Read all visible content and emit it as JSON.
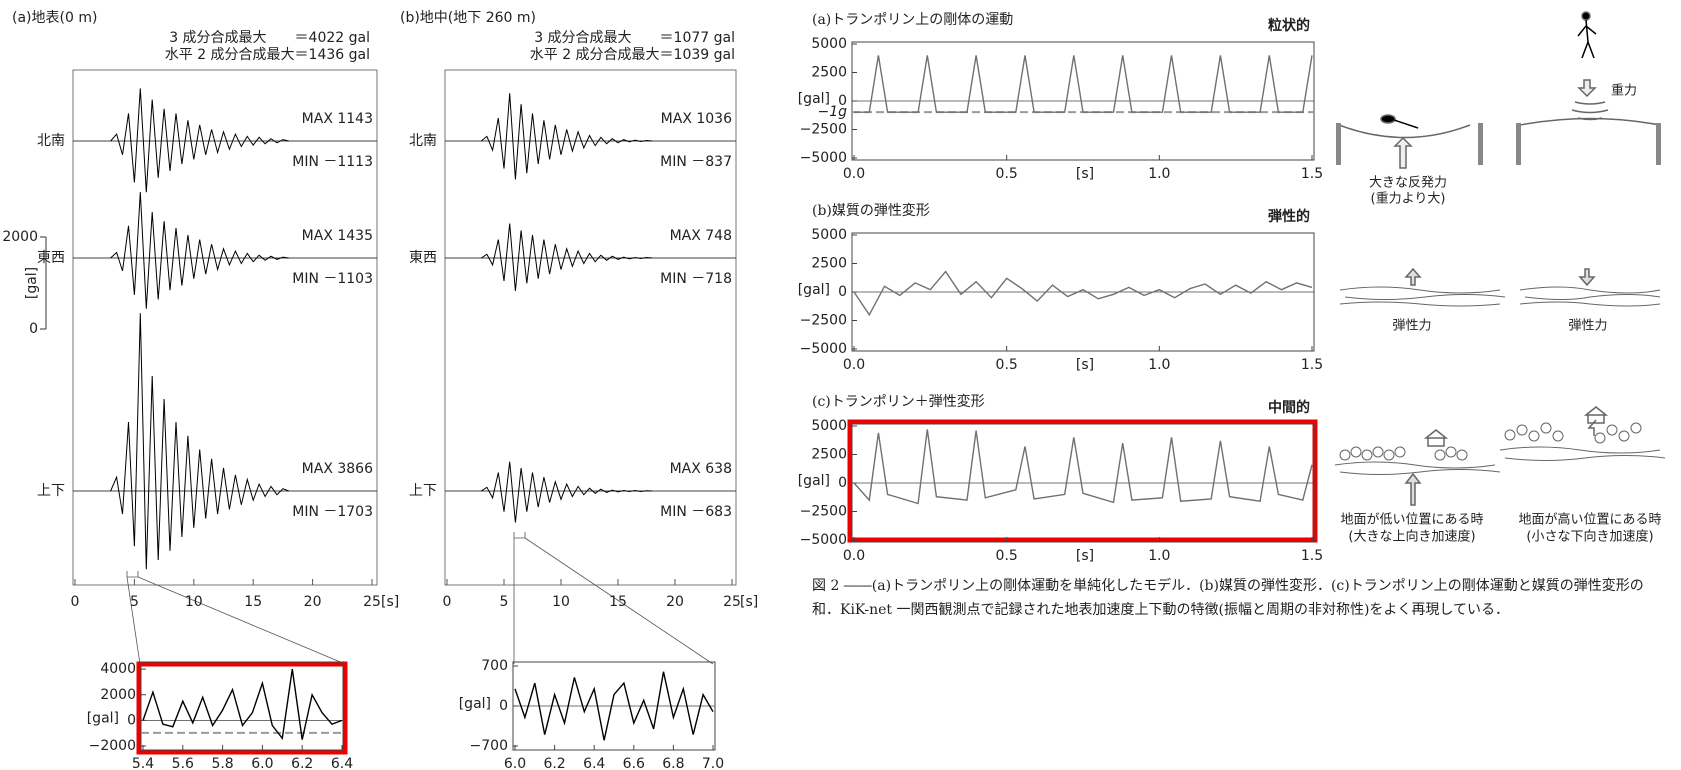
{
  "chart_data": [
    {
      "type": "seismogram",
      "title": "(a)地表(0 m)",
      "subtitle": [
        "3 成分合成最大　　＝4022 gal",
        "水平 2 成分合成最大＝1436 gal"
      ],
      "xlim": [
        0,
        25
      ],
      "xticks": [
        0,
        5,
        10,
        15,
        20,
        25
      ],
      "xlabel": "[s]",
      "scale_ticks": [
        2000,
        0
      ],
      "scale_label": "[gal]",
      "x": [
        3,
        3.5,
        4,
        4.5,
        5,
        5.5,
        6,
        6.5,
        7,
        7.5,
        8,
        8.5,
        9,
        9.5,
        10,
        10.5,
        11,
        11.5,
        12,
        12.5,
        13,
        13.5,
        14,
        14.5,
        15,
        15.5,
        16,
        16.5,
        17,
        17.5,
        18
      ],
      "series": [
        {
          "name": "北南",
          "color": "#000000",
          "max_label": "MAX 1143",
          "min_label": "MIN －1113",
          "values": [
            0,
            150,
            -300,
            600,
            -900,
            1143,
            -1113,
            900,
            -800,
            700,
            -650,
            600,
            -500,
            450,
            -400,
            350,
            -300,
            250,
            -250,
            200,
            -180,
            150,
            -120,
            100,
            -90,
            80,
            -60,
            50,
            -40,
            30,
            0
          ]
        },
        {
          "name": "東西",
          "color": "#000000",
          "max_label": "MAX 1435",
          "min_label": "MIN －1103",
          "values": [
            0,
            120,
            -280,
            700,
            -800,
            1435,
            -1103,
            1000,
            -900,
            800,
            -700,
            650,
            -600,
            500,
            -450,
            400,
            -350,
            300,
            -250,
            200,
            -150,
            150,
            -120,
            100,
            -80,
            60,
            -50,
            40,
            -30,
            20,
            0
          ]
        },
        {
          "name": "上下",
          "color": "#000000",
          "max_label": "MAX 3866",
          "min_label": "MIN －1703",
          "values": [
            0,
            300,
            -500,
            1500,
            -1200,
            3866,
            -1703,
            2500,
            -1500,
            2000,
            -1300,
            1500,
            -1000,
            1200,
            -800,
            900,
            -600,
            700,
            -500,
            500,
            -400,
            350,
            -300,
            250,
            -200,
            150,
            -120,
            100,
            -80,
            50,
            0
          ]
        }
      ]
    },
    {
      "type": "seismogram",
      "title": "(b)地中(地下 260 m)",
      "subtitle": [
        "3 成分合成最大　　＝1077 gal",
        "水平 2 成分合成最大＝1039 gal"
      ],
      "xlim": [
        0,
        25
      ],
      "xticks": [
        0,
        5,
        10,
        15,
        20,
        25
      ],
      "xlabel": "[s]",
      "x": [
        3,
        3.5,
        4,
        4.5,
        5,
        5.5,
        6,
        6.5,
        7,
        7.5,
        8,
        8.5,
        9,
        9.5,
        10,
        10.5,
        11,
        11.5,
        12,
        12.5,
        13,
        13.5,
        14,
        14.5,
        15,
        15.5,
        16,
        16.5,
        17,
        17.5,
        18
      ],
      "series": [
        {
          "name": "北南",
          "color": "#000000",
          "max_label": "MAX 1036",
          "min_label": "MIN －837",
          "values": [
            0,
            100,
            -200,
            500,
            -600,
            1036,
            -837,
            800,
            -700,
            600,
            -500,
            450,
            -400,
            350,
            -300,
            250,
            -220,
            200,
            -150,
            120,
            -100,
            80,
            -60,
            50,
            -40,
            30,
            -20,
            20,
            -10,
            10,
            0
          ]
        },
        {
          "name": "東西",
          "color": "#000000",
          "max_label": "MAX 748",
          "min_label": "MIN －718",
          "values": [
            0,
            80,
            -150,
            400,
            -500,
            748,
            -718,
            600,
            -550,
            500,
            -450,
            400,
            -350,
            300,
            -250,
            200,
            -180,
            150,
            -120,
            100,
            -80,
            60,
            -50,
            40,
            -30,
            20,
            -20,
            10,
            -10,
            10,
            0
          ]
        },
        {
          "name": "上下",
          "color": "#000000",
          "max_label": "MAX 638",
          "min_label": "MIN －683",
          "values": [
            0,
            80,
            -150,
            400,
            -450,
            638,
            -683,
            500,
            -450,
            400,
            -350,
            300,
            -250,
            200,
            -180,
            150,
            -120,
            100,
            -80,
            60,
            -50,
            40,
            -30,
            20,
            -20,
            10,
            -10,
            10,
            -10,
            5,
            0
          ]
        }
      ]
    },
    {
      "type": "line",
      "xlim": [
        5.4,
        6.4
      ],
      "xticks": [
        5.4,
        5.6,
        5.8,
        {
          "value": 6,
          "label": "6.0"
        },
        6.2,
        6.4
      ],
      "ylim": [
        -2000,
        4400
      ],
      "yticks": [
        4000,
        2000,
        0,
        {
          "value": -2000,
          "label": "−2000"
        }
      ],
      "ylabel": "[gal]",
      "ref_line": -980,
      "color": "#000000",
      "x": [
        5.4,
        5.45,
        5.5,
        5.55,
        5.6,
        5.65,
        5.7,
        5.75,
        5.8,
        5.85,
        5.9,
        5.95,
        6,
        6.05,
        6.1,
        6.15,
        6.2,
        6.25,
        6.3,
        6.35,
        6.4
      ],
      "values": [
        0,
        2200,
        -300,
        -500,
        1500,
        -200,
        1800,
        -400,
        800,
        2400,
        -400,
        600,
        2900,
        -400,
        -1400,
        4000,
        -1500,
        2000,
        600,
        -300,
        0
      ]
    },
    {
      "type": "line",
      "xlim": [
        6,
        7
      ],
      "xticks": [
        {
          "value": 6,
          "label": "6.0"
        },
        6.2,
        6.4,
        6.6,
        6.8,
        {
          "value": 7,
          "label": "7.0"
        }
      ],
      "ylim": [
        -700,
        700
      ],
      "yticks": [
        700,
        0,
        {
          "value": -700,
          "label": "−700"
        }
      ],
      "ylabel": "[gal]",
      "color": "#000000",
      "x": [
        6,
        6.05,
        6.1,
        6.15,
        6.2,
        6.25,
        6.3,
        6.35,
        6.4,
        6.45,
        6.5,
        6.55,
        6.6,
        6.65,
        6.7,
        6.75,
        6.8,
        6.85,
        6.9,
        6.95,
        7
      ],
      "values": [
        300,
        -200,
        400,
        -500,
        200,
        -300,
        500,
        -100,
        300,
        -600,
        200,
        400,
        -300,
        100,
        -400,
        600,
        -200,
        300,
        -500,
        200,
        -100
      ]
    },
    {
      "type": "line",
      "title": "(a)トランポリン上の剛体の運動",
      "tag": "粒状的",
      "xlim": [
        0,
        1.5
      ],
      "xticks": [
        {
          "value": 0,
          "label": "0.0"
        },
        0.5,
        {
          "value": 1,
          "label": "1.0"
        },
        1.5
      ],
      "xlabel": "[s]",
      "ylim": [
        -5000,
        5000
      ],
      "yticks": [
        5000,
        2500,
        0,
        {
          "value": -2500,
          "label": "−2500"
        },
        {
          "value": -5000,
          "label": "−5000"
        }
      ],
      "ylabel": "[gal]",
      "ref_line": -980,
      "ref_label": "−1g",
      "color": "#707070",
      "x": [
        0,
        0.05,
        0.08,
        0.11,
        0.21,
        0.24,
        0.27,
        0.37,
        0.4,
        0.43,
        0.53,
        0.56,
        0.59,
        0.69,
        0.72,
        0.75,
        0.85,
        0.88,
        0.91,
        1.01,
        1.04,
        1.07,
        1.17,
        1.2,
        1.23,
        1.33,
        1.36,
        1.39,
        1.47,
        1.5
      ],
      "values": [
        -980,
        -980,
        4000,
        -980,
        -980,
        4000,
        -980,
        -980,
        4000,
        -980,
        -980,
        4000,
        -980,
        -980,
        4000,
        -980,
        -980,
        4000,
        -980,
        -980,
        4000,
        -980,
        -980,
        4000,
        -980,
        -980,
        4000,
        -980,
        -980,
        4000
      ]
    },
    {
      "type": "line",
      "title": "(b)媒質の弾性変形",
      "tag": "弾性的",
      "xlim": [
        0,
        1.5
      ],
      "xticks": [
        {
          "value": 0,
          "label": "0.0"
        },
        0.5,
        {
          "value": 1,
          "label": "1.0"
        },
        1.5
      ],
      "xlabel": "[s]",
      "ylim": [
        -5000,
        5000
      ],
      "yticks": [
        5000,
        2500,
        0,
        {
          "value": -2500,
          "label": "−2500"
        },
        {
          "value": -5000,
          "label": "−5000"
        }
      ],
      "ylabel": "[gal]",
      "color": "#707070",
      "x": [
        0,
        0.05,
        0.1,
        0.15,
        0.2,
        0.25,
        0.3,
        0.35,
        0.4,
        0.45,
        0.5,
        0.55,
        0.6,
        0.65,
        0.7,
        0.75,
        0.8,
        0.85,
        0.9,
        0.95,
        1,
        1.05,
        1.1,
        1.15,
        1.2,
        1.25,
        1.3,
        1.35,
        1.4,
        1.45,
        1.5
      ],
      "values": [
        0,
        -2000,
        500,
        -300,
        800,
        200,
        1800,
        -200,
        900,
        -500,
        1200,
        300,
        -800,
        600,
        -400,
        200,
        -600,
        -200,
        400,
        -300,
        200,
        -500,
        300,
        700,
        -200,
        600,
        -100,
        900,
        200,
        800,
        400
      ]
    },
    {
      "type": "line",
      "title": "(c)トランポリン＋弾性変形",
      "tag": "中間的",
      "xlim": [
        0,
        1.5
      ],
      "xticks": [
        {
          "value": 0,
          "label": "0.0"
        },
        0.5,
        {
          "value": 1,
          "label": "1.0"
        },
        1.5
      ],
      "xlabel": "[s]",
      "ylim": [
        -5000,
        5000
      ],
      "yticks": [
        5000,
        2500,
        0,
        {
          "value": -2500,
          "label": "−2500"
        },
        {
          "value": -5000,
          "label": "−5000"
        }
      ],
      "ylabel": "[gal]",
      "color": "#707070",
      "x": [
        0,
        0.05,
        0.08,
        0.11,
        0.21,
        0.24,
        0.27,
        0.37,
        0.4,
        0.43,
        0.53,
        0.56,
        0.59,
        0.69,
        0.72,
        0.75,
        0.85,
        0.88,
        0.91,
        1.01,
        1.04,
        1.07,
        1.17,
        1.2,
        1.23,
        1.33,
        1.36,
        1.39,
        1.47,
        1.5
      ],
      "values": [
        0,
        -1500,
        4400,
        -1000,
        -1800,
        4700,
        -1200,
        -1500,
        4600,
        -1300,
        -600,
        3200,
        -1400,
        -1000,
        4000,
        -900,
        -1700,
        3500,
        -1500,
        -1300,
        4000,
        -1600,
        -1400,
        3700,
        -1200,
        -1600,
        3200,
        -1000,
        -1500,
        1600
      ]
    }
  ],
  "illustrations": {
    "gravity": "重力",
    "reaction": [
      "大きな反発力",
      "(重力より大)"
    ],
    "elastic_left": "弾性力",
    "elastic_right": "弾性力",
    "low": [
      "地面が低い位置にある時",
      "(大きな上向き加速度)"
    ],
    "high": [
      "地面が高い位置にある時",
      "(小さな下向き加速度)"
    ]
  },
  "caption": "図 2 ――(a)トランポリン上の剛体運動を単純化したモデル．(b)媒質の弾性変形．(c)トランポリン上の剛体運動と媒質の弾性変形の和．KiK-net 一関西観測点で記録された地表加速度上下動の特徴(振幅と周期の非対称性)をよく再現している．"
}
